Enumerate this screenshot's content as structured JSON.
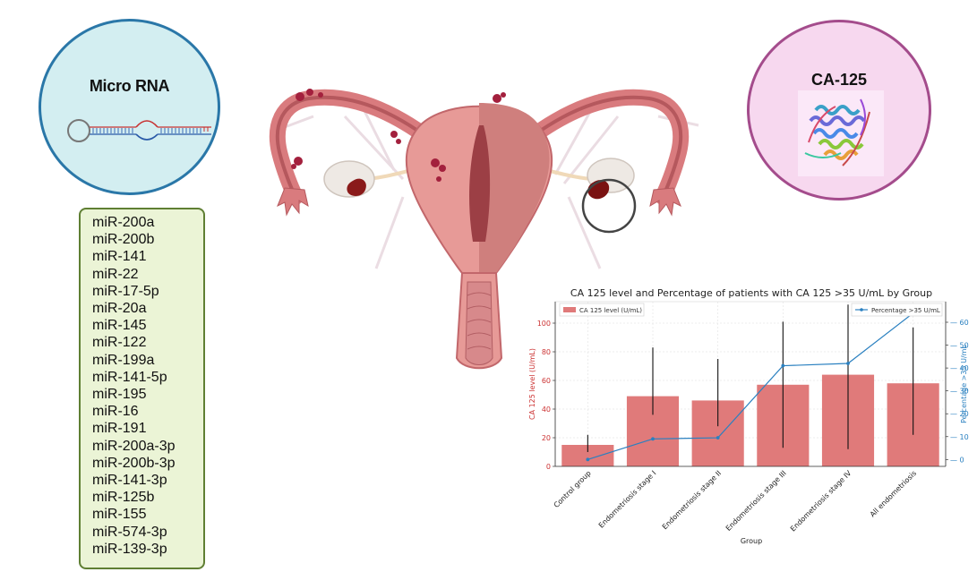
{
  "left_circle": {
    "title": "Micro RNA"
  },
  "right_circle": {
    "title": "CA-125"
  },
  "mirna_list": [
    "miR-200a",
    "miR-200b",
    "miR-141",
    "miR-22",
    "miR-17-5p",
    "miR-20a",
    "miR-145",
    "miR-122",
    "miR-199a",
    "miR-141-5p",
    "miR-195",
    "miR-16",
    "miR-191",
    "miR-200a-3p",
    "miR-200b-3p",
    "miR-141-3p",
    "miR-125b",
    "miR-155",
    "miR-574-3p",
    "miR-139-3p"
  ],
  "colors": {
    "bar": "#e07a7a",
    "line": "#2a80c0",
    "left_axis": "#cc3333",
    "right_axis": "#2a80c0",
    "mirna_circle_fill": "#d3eef1",
    "ca_circle_fill": "#f7d8ef",
    "list_fill": "#ebf4d6"
  },
  "icons": [
    "rna-hairpin-icon",
    "ca125-protein-icon",
    "uterus-illustration",
    "lesion-highlight-circle"
  ],
  "chart_data": {
    "type": "bar",
    "title": "CA 125 level and Percentage of patients with CA 125 >35 U/mL by Group",
    "xlabel": "Group",
    "ylabel": "CA 125 level (U/mL)",
    "y2label": "Percentage >35 U/mL",
    "categories": [
      "Control group",
      "Endometriosis stage I",
      "Endometriosis stage II",
      "Endometriosis stage III",
      "Endometriosis stage IV",
      "All endometriosis"
    ],
    "series": [
      {
        "name": "CA 125 level (U/mL)",
        "type": "bar",
        "axis": "left",
        "values": [
          15,
          49,
          46,
          57,
          64,
          58
        ],
        "error_low": [
          10,
          36,
          28,
          13,
          12,
          22
        ],
        "error_high": [
          22,
          83,
          75,
          101,
          113,
          97
        ]
      },
      {
        "name": "Percentage >35 U/mL",
        "type": "line",
        "axis": "right",
        "values": [
          0,
          9,
          9.5,
          41,
          42,
          64
        ]
      }
    ],
    "ylim": [
      0,
      115
    ],
    "yticks": [
      0,
      20,
      40,
      60,
      80,
      100
    ],
    "y2lim": [
      -3,
      69
    ],
    "y2ticks": [
      0,
      10,
      20,
      30,
      40,
      50,
      60
    ],
    "legend_left": "top-left",
    "legend_right": "top-right",
    "grid": true
  }
}
